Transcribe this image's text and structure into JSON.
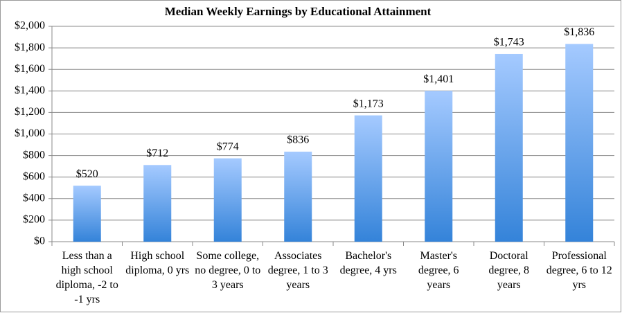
{
  "chart_data": {
    "type": "bar",
    "title": "Median Weekly Earnings by Educational Attainment",
    "categories": [
      "Less than a high school diploma, -2 to -1 yrs",
      "High school diploma, 0 yrs",
      "Some college, no degree, 0 to 3 years",
      "Associates degree,  1 to 3 years",
      "Bachelor's degree, 4 yrs",
      "Master's degree, 6 years",
      "Doctoral degree, 8 years",
      "Professional degree, 6 to 12 yrs"
    ],
    "values": [
      520,
      712,
      774,
      836,
      1173,
      1401,
      1743,
      1836
    ],
    "value_labels": [
      "$520",
      "$712",
      "$774",
      "$836",
      "$1,173",
      "$1,401",
      "$1,743",
      "$1,836"
    ],
    "gradient": [
      "#a5caff",
      "#3483d9"
    ],
    "ylim": [
      0,
      2000
    ],
    "yticks": [
      {
        "value": 0,
        "label": "$0"
      },
      {
        "value": 200,
        "label": "$200"
      },
      {
        "value": 400,
        "label": "$400"
      },
      {
        "value": 600,
        "label": "$600"
      },
      {
        "value": 800,
        "label": "$800"
      },
      {
        "value": 1000,
        "label": "$1,000"
      },
      {
        "value": 1200,
        "label": "$1,200"
      },
      {
        "value": 1400,
        "label": "$1,400"
      },
      {
        "value": 1600,
        "label": "$1,600"
      },
      {
        "value": 1800,
        "label": "$1,800"
      },
      {
        "value": 2000,
        "label": "$2,000"
      }
    ],
    "grid": true
  }
}
